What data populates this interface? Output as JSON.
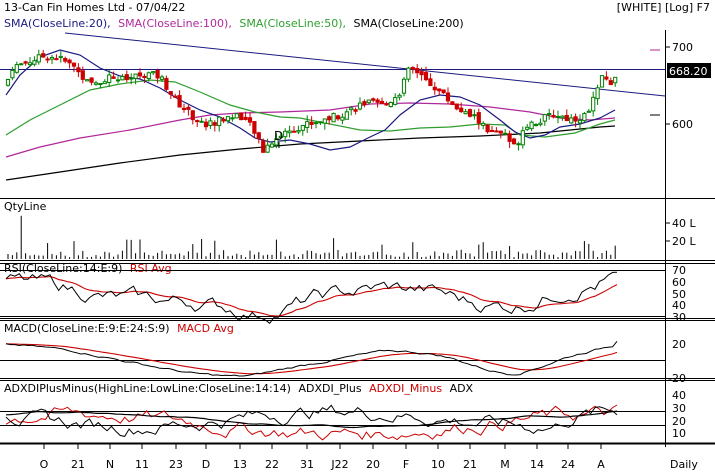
{
  "header": {
    "title": "13-Can Fin Homes Ltd - 07/04/22",
    "flags": "[WHITE] [Log] F7"
  },
  "colors": {
    "bg": "#ffffff",
    "frame": "#000000",
    "up": "#008000",
    "down": "#cc0000",
    "sma20": "#1a1a80",
    "sma50": "#2e9e2e",
    "sma100": "#b0279c",
    "sma200": "#000000",
    "trend": "#1a1a80",
    "rsi": "#000000",
    "rsi_avg": "#cc0000",
    "macd": "#000000",
    "macd_avg": "#cc0000",
    "adx_plus": "#000000",
    "adx_minus": "#cc0000",
    "adx": "#000000",
    "price_tag_bg": "#000000",
    "price_tag_fg": "#ffffff"
  },
  "price_panel": {
    "legend": [
      {
        "text": "SMA(CloseLine:20),",
        "color": "#1a1a80"
      },
      {
        "text": "SMA(CloseLine:100),",
        "color": "#b0279c"
      },
      {
        "text": "SMA(CloseLine:50),",
        "color": "#2e9e2e"
      },
      {
        "text": "SMA(CloseLine:200)",
        "color": "#000000"
      }
    ],
    "current_price_label": "668.20",
    "marker_label": "D",
    "y_ticks": [
      "700",
      "600"
    ]
  },
  "volume_panel": {
    "label": "QtyLine",
    "y_ticks": [
      "40 L",
      "20 L"
    ]
  },
  "rsi_panel": {
    "legend": [
      {
        "text": "RSI(CloseLine:14:E:9)",
        "color": "#000000"
      },
      {
        "text": "RSI Avg",
        "color": "#cc0000"
      }
    ],
    "y_ticks": [
      "70",
      "60",
      "50",
      "40",
      "30"
    ]
  },
  "macd_panel": {
    "legend": [
      {
        "text": "MACD(CloseLine:E:9:E:24:S:9)",
        "color": "#000000"
      },
      {
        "text": "MACD Avg",
        "color": "#cc0000"
      }
    ],
    "y_ticks": [
      "20",
      "-20"
    ]
  },
  "adx_panel": {
    "legend": [
      {
        "text": "ADXDIPlusMinus(HighLine:LowLine:CloseLine:14:14)",
        "color": "#000000"
      },
      {
        "text": "ADXDI_Plus",
        "color": "#000000"
      },
      {
        "text": "ADXDI_Minus",
        "color": "#cc0000"
      },
      {
        "text": "ADX",
        "color": "#000000"
      }
    ],
    "y_ticks": [
      "40",
      "30",
      "20",
      "10"
    ]
  },
  "x_axis": {
    "labels": [
      "O",
      "21",
      "N",
      "11",
      "23",
      "D",
      "13",
      "22",
      "31",
      "J22",
      "20",
      "F",
      "10",
      "21",
      "M",
      "14",
      "24",
      "A"
    ],
    "periodicity": "Daily"
  },
  "chart_data": {
    "type": "candlestick",
    "title": "13-Can Fin Homes Ltd - 07/04/22",
    "x": [
      "Oct-21",
      "Nov-21",
      "Dec-21",
      "Jan-22",
      "Feb-22",
      "Mar-22",
      "Apr-22"
    ],
    "price_anchors": [
      {
        "date": "Oct-21",
        "close": 680
      },
      {
        "date": "Oct-21 (21)",
        "close": 665
      },
      {
        "date": "Nov-21",
        "close": 650
      },
      {
        "date": "Nov-21 (11)",
        "close": 660
      },
      {
        "date": "Nov-21 (23)",
        "close": 625
      },
      {
        "date": "Dec-21",
        "close": 605
      },
      {
        "date": "Dec-21 (13)",
        "close": 600
      },
      {
        "date": "Dec-21 (22)",
        "close": 575
      },
      {
        "date": "Dec-21 (31)",
        "close": 595
      },
      {
        "date": "Jan-22",
        "close": 615
      },
      {
        "date": "Jan-22 (20)",
        "close": 625
      },
      {
        "date": "Feb-22",
        "close": 665
      },
      {
        "date": "Feb-22 (10)",
        "close": 640
      },
      {
        "date": "Feb-22 (21)",
        "close": 610
      },
      {
        "date": "Mar-22",
        "close": 575
      },
      {
        "date": "Mar-22 (14)",
        "close": 600
      },
      {
        "date": "Mar-22 (24)",
        "close": 605
      },
      {
        "date": "Apr-22 (07)",
        "close": 668.2
      }
    ],
    "last_close": 668.2,
    "price_axis_ticks": [
      700,
      600
    ],
    "price_scale": "log",
    "volume_axis_ticks_lakh": [
      40,
      20
    ],
    "rsi_axis_ticks": [
      70,
      60,
      50,
      40,
      30
    ],
    "rsi_last": 68,
    "macd_axis_ticks": [
      20,
      -20
    ],
    "macd_last": 22,
    "adx_axis_ticks": [
      40,
      30,
      20,
      10
    ]
  }
}
